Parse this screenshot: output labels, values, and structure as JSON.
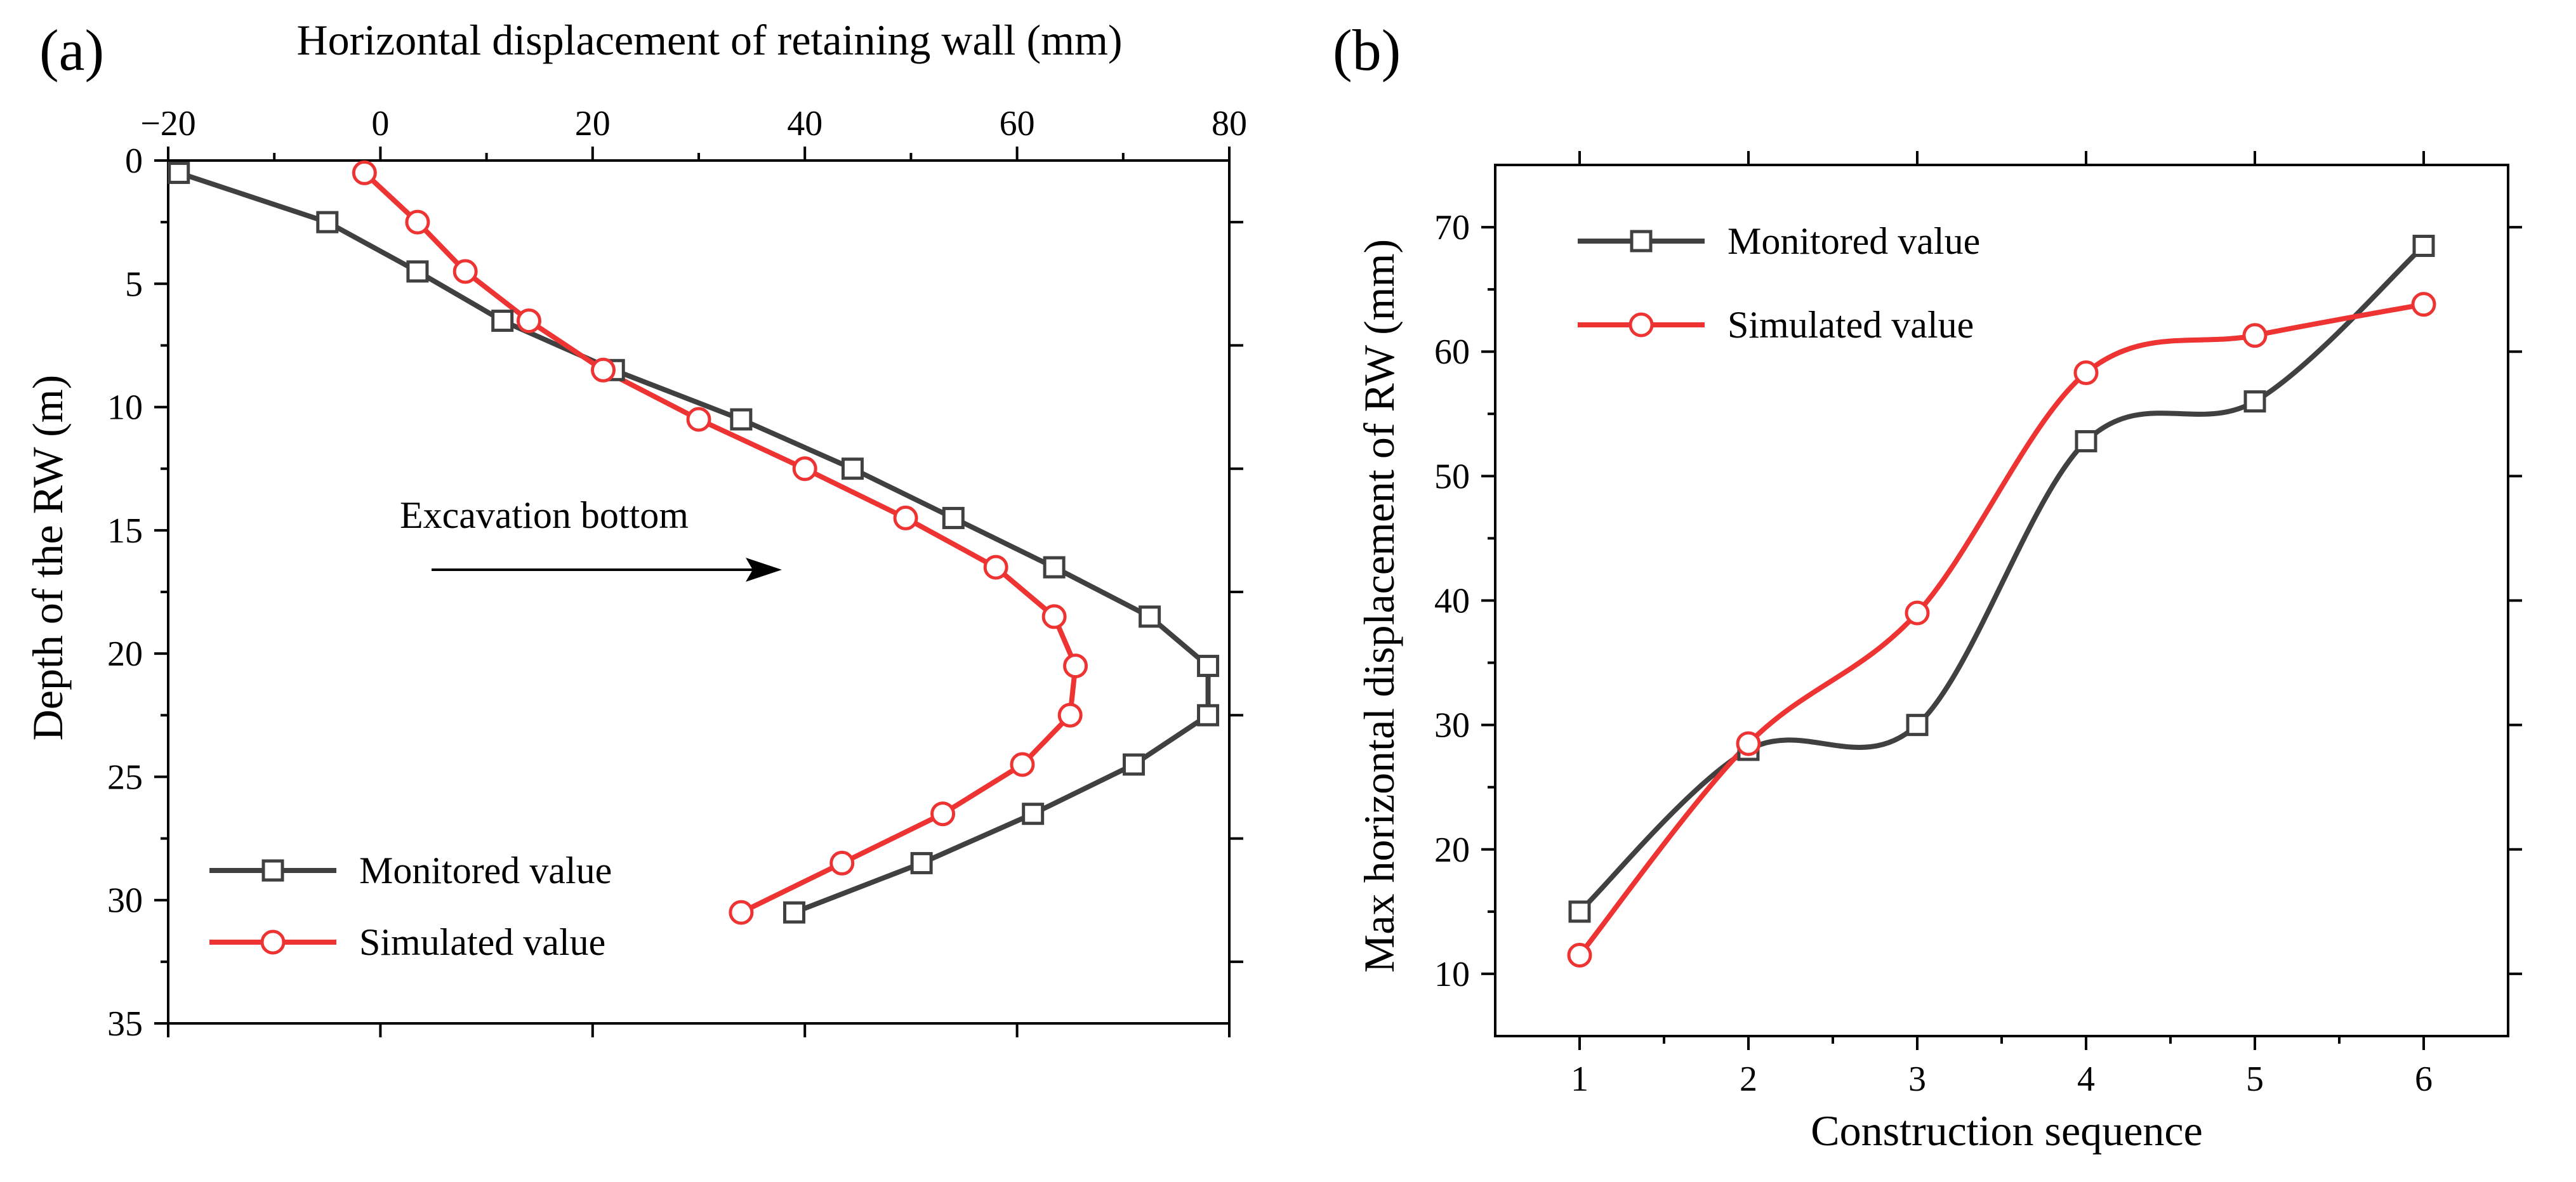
{
  "chart_data": [
    {
      "type": "line",
      "panel": "(a)",
      "title": "",
      "xlabel": "Horizontal displacement of retaining wall (mm)",
      "ylabel": "Depth of the RW (m)",
      "xlim": [
        -20,
        80
      ],
      "ylim": [
        0,
        35
      ],
      "y_inverted": true,
      "x_axis_position": "top",
      "x_ticks": [
        -20,
        0,
        20,
        40,
        60,
        80
      ],
      "x_tick_labels": [
        "−20",
        "0",
        "20",
        "40",
        "60",
        "80"
      ],
      "y_ticks": [
        0,
        5,
        10,
        15,
        20,
        25,
        30,
        35
      ],
      "y_tick_labels": [
        "0",
        "5",
        "10",
        "15",
        "20",
        "25",
        "30",
        "35"
      ],
      "legend_position": "bottom-left",
      "annotations": [
        {
          "text": "Excavation bottom",
          "arrow": true
        }
      ],
      "series": [
        {
          "name": "Monitored value",
          "color": "#404040",
          "marker": "square",
          "x": [
            -19,
            -5,
            3.5,
            11.5,
            22,
            34,
            44.5,
            54,
            63.5,
            72.5,
            78,
            78,
            71,
            61.5,
            51,
            39
          ],
          "y": [
            0.5,
            2.5,
            4.5,
            6.5,
            8.5,
            10.5,
            12.5,
            14.5,
            16.5,
            18.5,
            20.5,
            22.5,
            24.5,
            26.5,
            28.5,
            30.5
          ]
        },
        {
          "name": "Simulated value",
          "color": "#ee3333",
          "marker": "circle",
          "x": [
            -1.5,
            3.5,
            8,
            14,
            21,
            30,
            40,
            49.5,
            58,
            63.5,
            65.5,
            65,
            60.5,
            53,
            43.5,
            34
          ],
          "y": [
            0.5,
            2.5,
            4.5,
            6.5,
            8.5,
            10.5,
            12.5,
            14.5,
            16.5,
            18.5,
            20.5,
            22.5,
            24.5,
            26.5,
            28.5,
            30.5
          ]
        }
      ]
    },
    {
      "type": "line",
      "panel": "(b)",
      "title": "",
      "xlabel": "Construction sequence",
      "ylabel": "Max horizontal displacement of RW (mm)",
      "xlim": [
        0.5,
        6.5
      ],
      "ylim": [
        5,
        75
      ],
      "x_ticks": [
        1,
        2,
        3,
        4,
        5,
        6
      ],
      "x_tick_labels": [
        "1",
        "2",
        "3",
        "4",
        "5",
        "6"
      ],
      "y_ticks": [
        10,
        20,
        30,
        40,
        50,
        60,
        70
      ],
      "y_tick_labels": [
        "10",
        "20",
        "30",
        "40",
        "50",
        "60",
        "70"
      ],
      "legend_position": "top-left",
      "series": [
        {
          "name": "Monitored value",
          "color": "#404040",
          "marker": "square",
          "x": [
            1,
            2,
            3,
            4,
            5,
            6
          ],
          "y": [
            15,
            28,
            30,
            52.8,
            56,
            68.5
          ]
        },
        {
          "name": "Simulated value",
          "color": "#ee3333",
          "marker": "circle",
          "x": [
            1,
            2,
            3,
            4,
            5,
            6
          ],
          "y": [
            11.5,
            28.5,
            39,
            58.3,
            61.3,
            63.8
          ]
        }
      ]
    }
  ]
}
